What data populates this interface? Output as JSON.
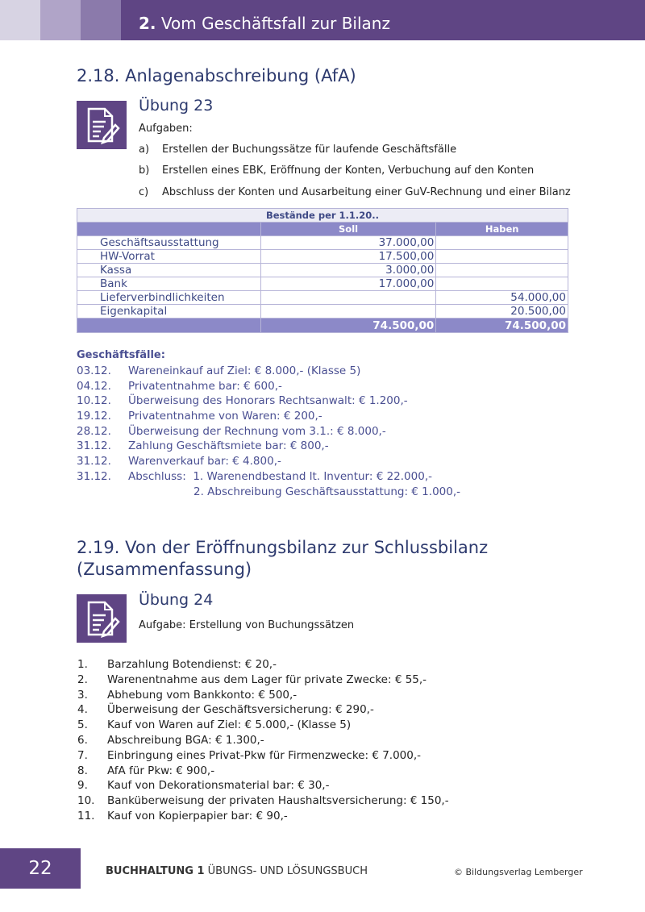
{
  "header": {
    "chapter_number": "2.",
    "chapter_title": "Vom Geschäftsfall zur Bilanz",
    "accent": "#5f4584"
  },
  "section1": {
    "title": "2.18. Anlagenabschreibung (AfA)",
    "exercise": "Übung 23",
    "intro": "Aufgaben:",
    "tasks": [
      {
        "label": "a)",
        "text": "Erstellen der Buchungssätze für laufende Geschäftsfälle"
      },
      {
        "label": "b)",
        "text": "Erstellen eines EBK, Eröffnung der Konten, Verbuchung auf den Konten"
      },
      {
        "label": "c)",
        "text": "Abschluss der Konten und Ausarbeitung einer GuV-Rechnung und einer Bilanz"
      }
    ],
    "table": {
      "title": "Bestände per 1.1.20..",
      "headers": [
        "",
        "Soll",
        "Haben"
      ],
      "rows": [
        [
          "Geschäftsausstattung",
          "37.000,00",
          ""
        ],
        [
          "HW-Vorrat",
          "17.500,00",
          ""
        ],
        [
          "Kassa",
          "3.000,00",
          ""
        ],
        [
          "Bank",
          "17.000,00",
          ""
        ],
        [
          "Lieferverbindlichkeiten",
          "",
          "54.000,00"
        ],
        [
          "Eigenkapital",
          "",
          "20.500,00"
        ]
      ],
      "totals": [
        "",
        "74.500,00",
        "74.500,00"
      ]
    },
    "cases_title": "Geschäftsfälle:",
    "cases": [
      {
        "date": "03.12.",
        "text": "Wareneinkauf auf Ziel: € 8.000,- (Klasse 5)"
      },
      {
        "date": "04.12.",
        "text": "Privatentnahme bar: € 600,-"
      },
      {
        "date": "10.12.",
        "text": "Überweisung des Honorars Rechtsanwalt: € 1.200,-"
      },
      {
        "date": "19.12.",
        "text": "Privatentnahme von Waren: € 200,-"
      },
      {
        "date": "28.12.",
        "text": "Überweisung der Rechnung vom 3.1.: € 8.000,-"
      },
      {
        "date": "31.12.",
        "text": "Zahlung Geschäftsmiete bar: € 800,-"
      },
      {
        "date": "31.12.",
        "text": "Warenverkauf bar: € 4.800,-"
      },
      {
        "date": "31.12.",
        "text": "Abschluss:  1. Warenendbestand lt. Inventur: € 22.000,-"
      }
    ],
    "cases_continuation": "2. Abschreibung Geschäftsausstattung: € 1.000,-"
  },
  "section2": {
    "title_line1": "2.19. Von der Eröffnungsbilanz zur Schlussbilanz",
    "title_line2": "(Zusammenfassung)",
    "exercise": "Übung 24",
    "intro": "Aufgabe: Erstellung von Buchungssätzen",
    "items": [
      {
        "n": "1.",
        "text": "Barzahlung Botendienst: € 20,-"
      },
      {
        "n": "2.",
        "text": "Warenentnahme aus dem Lager für private Zwecke: € 55,-"
      },
      {
        "n": "3.",
        "text": "Abhebung vom Bankkonto: € 500,-"
      },
      {
        "n": "4.",
        "text": "Überweisung der Geschäftsversicherung: € 290,-"
      },
      {
        "n": "5.",
        "text": "Kauf von Waren auf Ziel: € 5.000,- (Klasse 5)"
      },
      {
        "n": "6.",
        "text": "Abschreibung BGA: € 1.300,-"
      },
      {
        "n": "7.",
        "text": "Einbringung eines Privat-Pkw für Firmenzwecke: € 7.000,-"
      },
      {
        "n": "8.",
        "text": "AfA für Pkw: € 900,-"
      },
      {
        "n": "9.",
        "text": "Kauf von Dekorationsmaterial bar: € 30,-"
      },
      {
        "n": "10.",
        "text": "Banküberweisung der privaten Haushaltsversicherung: € 150,-"
      },
      {
        "n": "11.",
        "text": "Kauf von Kopierpapier bar: € 90,-"
      }
    ]
  },
  "footer": {
    "page": "22",
    "book_bold": "BUCHHALTUNG 1",
    "book_rest": " ÜBUNGS- UND LÖSUNGSBUCH",
    "copyright": "© Bildungsverlag Lemberger"
  }
}
